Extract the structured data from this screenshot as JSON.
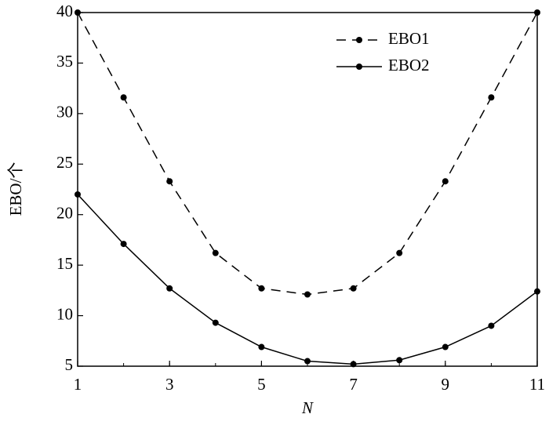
{
  "chart_data": {
    "type": "line",
    "x": [
      1,
      2,
      3,
      4,
      5,
      6,
      7,
      8,
      9,
      10,
      11
    ],
    "series": [
      {
        "name": "EBO1",
        "color": "#000000",
        "linestyle": "dashed",
        "values": [
          40,
          31.6,
          23.3,
          16.2,
          12.7,
          12.1,
          12.7,
          16.2,
          23.3,
          31.6,
          40
        ]
      },
      {
        "name": "EBO2",
        "color": "#000000",
        "linestyle": "solid",
        "values": [
          22.0,
          17.1,
          12.7,
          9.3,
          6.9,
          5.5,
          5.2,
          5.6,
          6.9,
          9.0,
          12.4
        ]
      }
    ],
    "xlabel": "N",
    "ylabel": "EBO/个",
    "xlim": [
      1,
      11
    ],
    "xticks": [
      1,
      3,
      5,
      7,
      9,
      11
    ],
    "ylim": [
      5,
      40
    ],
    "yticks": [
      5,
      10,
      15,
      20,
      25,
      30,
      35,
      40
    ],
    "legend": "upper right"
  }
}
